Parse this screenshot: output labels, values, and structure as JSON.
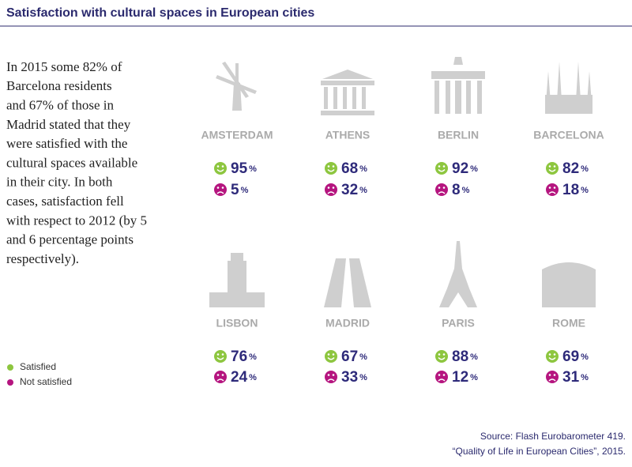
{
  "title": "Satisfaction with cultural spaces in European cities",
  "text": [
    "In 2015 some 82% of",
    "Barcelona residents",
    "and 67% of those in",
    "Madrid stated that they",
    "were satisfied with the",
    "cultural spaces available",
    "in their city. In both",
    "cases, satisfaction fell",
    "with respect to 2012 (by 5",
    "and 6 percentage points",
    "respectively)."
  ],
  "unit": "%",
  "cities": [
    {
      "name": "AMSTERDAM",
      "satisfied": 95,
      "not_satisfied": 5
    },
    {
      "name": "ATHENS",
      "satisfied": 68,
      "not_satisfied": 32
    },
    {
      "name": "BERLIN",
      "satisfied": 92,
      "not_satisfied": 8
    },
    {
      "name": "BARCELONA",
      "satisfied": 82,
      "not_satisfied": 18
    },
    {
      "name": "LISBON",
      "satisfied": 76,
      "not_satisfied": 24
    },
    {
      "name": "MADRID",
      "satisfied": 67,
      "not_satisfied": 33
    },
    {
      "name": "PARIS",
      "satisfied": 88,
      "not_satisfied": 12
    },
    {
      "name": "ROME",
      "satisfied": 69,
      "not_satisfied": 31
    }
  ],
  "legend": {
    "satisfied": "Satisfied",
    "not_satisfied": "Not satisfied"
  },
  "source": [
    "Source: Flash Eurobarometer 419.",
    "“Quality of Life in European Cities”, 2015."
  ]
}
